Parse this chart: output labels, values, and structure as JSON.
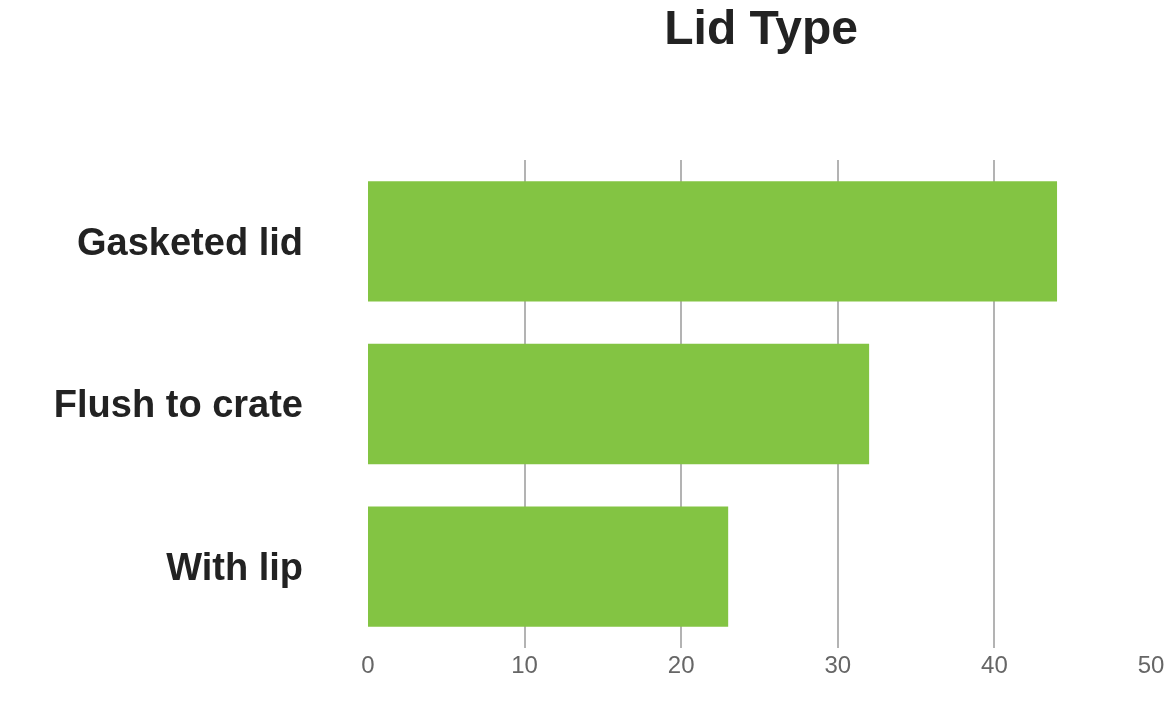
{
  "chart_data": {
    "type": "bar",
    "orientation": "horizontal",
    "title": "Lid Type",
    "categories": [
      "Gasketed lid",
      "Flush to crate",
      "With lip"
    ],
    "values": [
      44,
      32,
      23
    ],
    "color": "#83c443",
    "xlim": [
      0,
      50
    ],
    "xticks": [
      0,
      10,
      20,
      30,
      40,
      50
    ],
    "grid": "x"
  }
}
